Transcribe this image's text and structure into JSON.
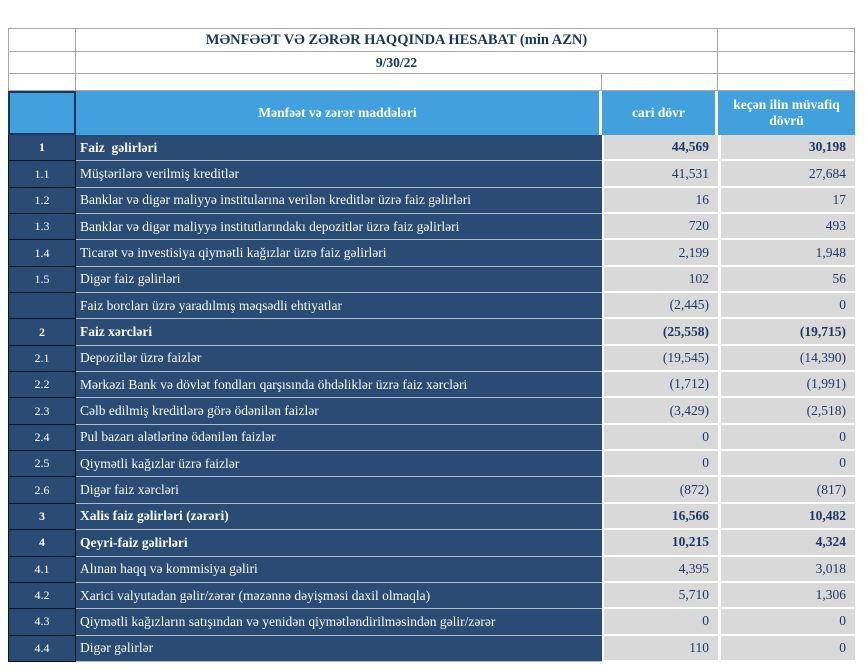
{
  "report": {
    "title": "MƏNFƏƏT VƏ ZƏRƏR HAQQINDA HESABAT (min AZN)",
    "date": "9/30/22"
  },
  "table": {
    "headers": {
      "items": "Mənfəət və zərər maddələri",
      "current": "cari dövr",
      "previous": "keçən ilin müvafiq dövrü"
    },
    "rows": [
      {
        "no": "1",
        "label": "Faiz  gəlirləri",
        "current": "44,569",
        "previous": "30,198",
        "bold": true
      },
      {
        "no": "1.1",
        "label": "Müştərilərə verilmiş kreditlər",
        "current": "41,531",
        "previous": "27,684",
        "bold": false
      },
      {
        "no": "1.2",
        "label": "Banklar və digər maliyyə institularına verilən kreditlər üzrə faiz gəlirləri",
        "current": "16",
        "previous": "17",
        "bold": false
      },
      {
        "no": "1.3",
        "label": "Banklar və digər maliyyə institutlarındakı depozitlər üzrə faiz gəlirləri",
        "current": "720",
        "previous": "493",
        "bold": false
      },
      {
        "no": "1.4",
        "label": "Ticarət və investisiya qiymətli kağızlar üzrə faiz gəlirləri",
        "current": "2,199",
        "previous": "1,948",
        "bold": false
      },
      {
        "no": "1.5",
        "label": "Digər faiz gəlirləri",
        "current": "102",
        "previous": "56",
        "bold": false
      },
      {
        "no": "",
        "label": "Faiz borcları üzrə yaradılmış məqsədli ehtiyatlar",
        "current": "(2,445)",
        "previous": "0",
        "bold": false
      },
      {
        "no": "2",
        "label": "Faiz xərcləri",
        "current": "(25,558)",
        "previous": "(19,715)",
        "bold": true
      },
      {
        "no": "2.1",
        "label": "Depozitlər üzrə faizlər",
        "current": "(19,545)",
        "previous": "(14,390)",
        "bold": false
      },
      {
        "no": "2.2",
        "label": "Mərkəzi Bank və dövlət fondları qarşısında öhdəliklər üzrə faiz xərcləri",
        "current": "(1,712)",
        "previous": "(1,991)",
        "bold": false
      },
      {
        "no": "2.3",
        "label": "Cəlb edilmiş kreditlərə görə ödənilən faizlər",
        "current": "(3,429)",
        "previous": "(2,518)",
        "bold": false
      },
      {
        "no": "2.4",
        "label": "Pul bazarı alətlərinə ödənilən faizlər",
        "current": "0",
        "previous": "0",
        "bold": false
      },
      {
        "no": "2.5",
        "label": "Qiymətli kağızlar üzrə faizlər",
        "current": "0",
        "previous": "0",
        "bold": false
      },
      {
        "no": "2.6",
        "label": "Digər faiz xərcləri",
        "current": "(872)",
        "previous": "(817)",
        "bold": false
      },
      {
        "no": "3",
        "label": "Xalis faiz gəlirləri (zərəri)",
        "current": "16,566",
        "previous": "10,482",
        "bold": true
      },
      {
        "no": "4",
        "label": "Qeyri-faiz gəlirləri",
        "current": "10,215",
        "previous": "4,324",
        "bold": true
      },
      {
        "no": "4.1",
        "label": "Alınan haqq və kommisiya gəliri",
        "current": "4,395",
        "previous": "3,018",
        "bold": false
      },
      {
        "no": "4.2",
        "label": "Xarici valyutadan gəlir/zərər (məzənnə dəyişməsi daxil olmaqla)",
        "current": "5,710",
        "previous": "1,306",
        "bold": false
      },
      {
        "no": "4.3",
        "label": "Qiymətli kağızların satışından və yenidən qiymətləndirilməsindən gəlir/zərər",
        "current": "0",
        "previous": "0",
        "bold": false
      },
      {
        "no": "4.4",
        "label": "Digər gəlirlər",
        "current": "110",
        "previous": "0",
        "bold": false
      }
    ]
  },
  "colors": {
    "header_blue": "#42A1DC",
    "row_navy": "#2A4B74",
    "value_cell_gray": "#D9D9D9",
    "value_text_navy": "#1F3864",
    "title_text_navy": "#17375E"
  }
}
